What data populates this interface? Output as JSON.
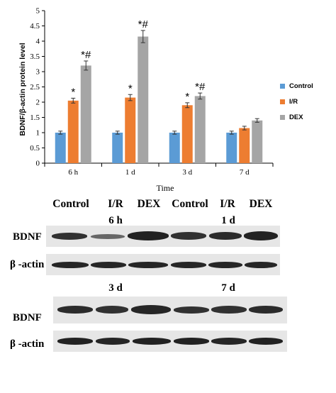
{
  "chart_data": {
    "type": "bar",
    "xlabel": "Time",
    "ylabel": "BDNF/β-actin protein level",
    "ylim": [
      0,
      5
    ],
    "yticks": [
      "0",
      "0.5",
      "1",
      "1.5",
      "2",
      "2.5",
      "3",
      "3.5",
      "4",
      "4.5",
      "5"
    ],
    "categories": [
      "6 h",
      "1 d",
      "3 d",
      "7 d"
    ],
    "series": [
      {
        "name": "Control",
        "color": "#5b9bd5",
        "values": [
          1.0,
          1.0,
          1.0,
          1.0
        ],
        "errors": [
          0.05,
          0.05,
          0.05,
          0.05
        ],
        "marks": [
          "",
          "",
          "",
          ""
        ]
      },
      {
        "name": "I/R",
        "color": "#ed7d31",
        "values": [
          2.05,
          2.15,
          1.9,
          1.15
        ],
        "errors": [
          0.08,
          0.1,
          0.08,
          0.06
        ],
        "marks": [
          "*",
          "*",
          "*",
          ""
        ]
      },
      {
        "name": "DEX",
        "color": "#a5a5a5",
        "values": [
          3.2,
          4.15,
          2.2,
          1.4
        ],
        "errors": [
          0.15,
          0.2,
          0.1,
          0.06
        ],
        "marks": [
          "*#",
          "*#",
          "*#",
          ""
        ]
      }
    ],
    "grid": false,
    "legend_position": "right"
  },
  "blot": {
    "lane_labels": [
      "Control",
      "I/R",
      "DEX",
      "Control",
      "I/R",
      "DEX"
    ],
    "top_panel": {
      "timepoints": [
        "6 h",
        "1 d"
      ],
      "rows": [
        "BDNF",
        "β -actin"
      ]
    },
    "bottom_panel": {
      "timepoints": [
        "3 d",
        "7 d"
      ],
      "rows": [
        "BDNF",
        "β -actin"
      ]
    }
  }
}
